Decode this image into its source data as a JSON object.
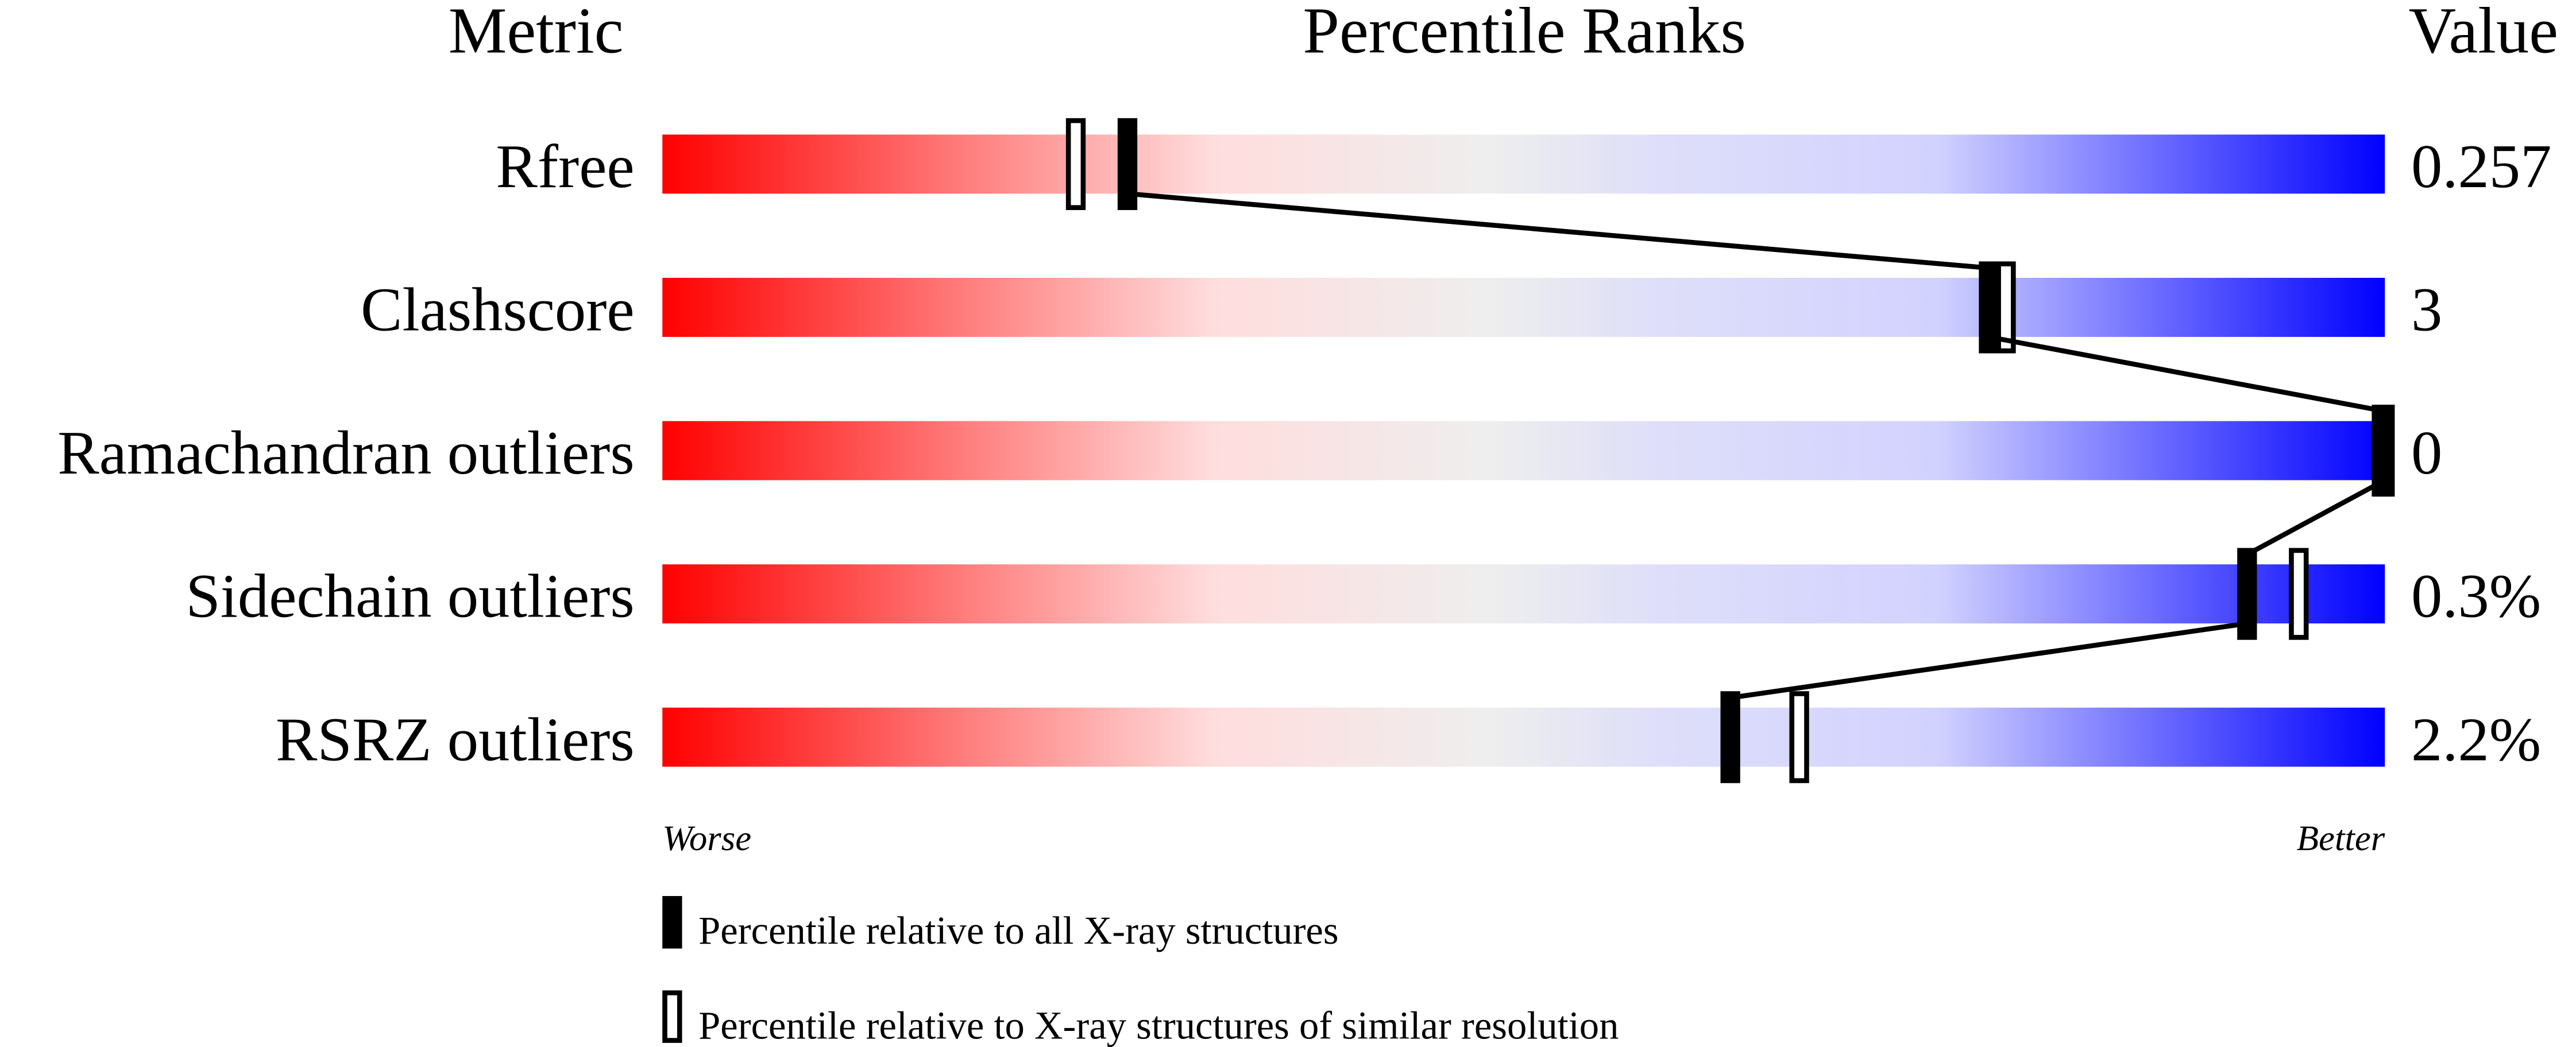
{
  "chart_data": {
    "type": "bar",
    "headers": {
      "metric": "Metric",
      "ranks": "Percentile Ranks",
      "value": "Value"
    },
    "xlim": [
      0,
      100
    ],
    "rows": [
      {
        "metric": "Rfree",
        "value": "0.257",
        "percentile_all": 27,
        "percentile_similar": 24
      },
      {
        "metric": "Clashscore",
        "value": "3",
        "percentile_all": 77,
        "percentile_similar": 78
      },
      {
        "metric": "Ramachandran outliers",
        "value": "0",
        "percentile_all": 100,
        "percentile_similar": 100
      },
      {
        "metric": "Sidechain outliers",
        "value": "0.3%",
        "percentile_all": 92,
        "percentile_similar": 95
      },
      {
        "metric": "RSRZ outliers",
        "value": "2.2%",
        "percentile_all": 62,
        "percentile_similar": 66
      }
    ],
    "axis_labels": {
      "left": "Worse",
      "right": "Better"
    },
    "legend": {
      "filled": "Percentile relative to all X-ray structures",
      "hollow": "Percentile relative to X-ray structures of similar resolution"
    },
    "gradient_colors": [
      "#ff0000",
      "#ff8080",
      "#ffdddd",
      "#eeeeee",
      "#dedefa",
      "#d2d2ff",
      "#0000ff"
    ]
  }
}
